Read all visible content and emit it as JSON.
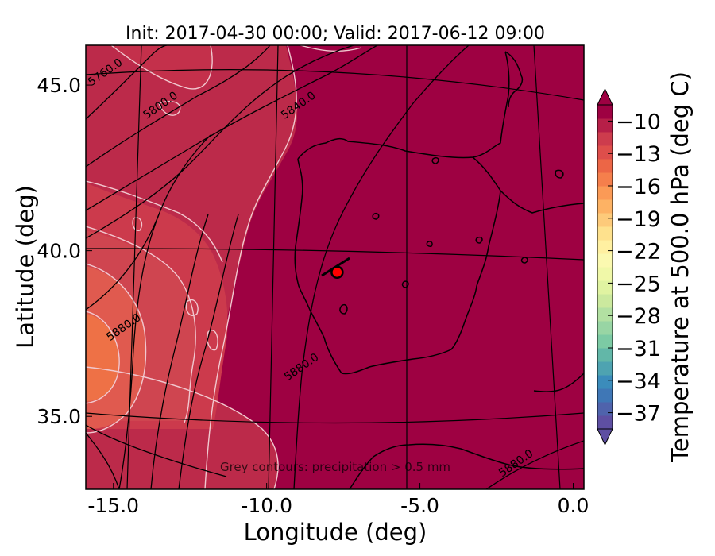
{
  "title": "Init: 2017-04-30 00:00; Valid: 2017-06-12 09:00",
  "map": {
    "xlabel": "Longitude (deg)",
    "ylabel": "Latitude (deg)",
    "lon_ticks": [
      "-15.0",
      "-10.0",
      "-5.0",
      "0.0"
    ],
    "lat_ticks": [
      "45.0",
      "40.0",
      "35.0"
    ],
    "lon_range": [
      -15.9,
      0.35
    ],
    "lat_range": [
      32.8,
      46.2
    ],
    "background_color": "#9e0142",
    "coast_color": "#000000",
    "precip_contour_color": "#f1c8cf",
    "height_contour_color": "#000000",
    "height_contour_labels": [
      {
        "text": "5760.0",
        "lon": -15.2,
        "lat": 45.3
      },
      {
        "text": "5800.0",
        "lon": -13.4,
        "lat": 44.3
      },
      {
        "text": "5840.0",
        "lon": -8.9,
        "lat": 44.3
      },
      {
        "text": "5880.0",
        "lon": -14.6,
        "lat": 37.6
      },
      {
        "text": "5880.0",
        "lon": -8.8,
        "lat": 36.4
      },
      {
        "text": "5880.0",
        "lon": -1.8,
        "lat": 33.5
      }
    ],
    "marker": {
      "lon": -7.7,
      "lat": 39.35,
      "color": "#ff0000"
    },
    "note": "Grey contours: precipitation > 0.5 mm"
  },
  "colorbar": {
    "label": "Temperature at 500.0 hPa (deg C)",
    "ticks": [
      "−10",
      "−13",
      "−16",
      "−19",
      "−22",
      "−25",
      "−28",
      "−31",
      "−34",
      "−37"
    ],
    "min": -38.5,
    "max": -8.5,
    "colors": [
      "#5e4fa2",
      "#4f63ac",
      "#3f77b6",
      "#3b8cbb",
      "#4ea3b1",
      "#62b7a8",
      "#7ccaa4",
      "#98d5a4",
      "#b2e0a2",
      "#cbe99e",
      "#e0f3a1",
      "#f0f8a8",
      "#fbf9b0",
      "#fff0a1",
      "#fee18d",
      "#fdca7a",
      "#fdb264",
      "#fb9a56",
      "#f57f4c",
      "#ec6646",
      "#de4e4b",
      "#cd3c4d",
      "#b61f48",
      "#9e0142"
    ]
  }
}
